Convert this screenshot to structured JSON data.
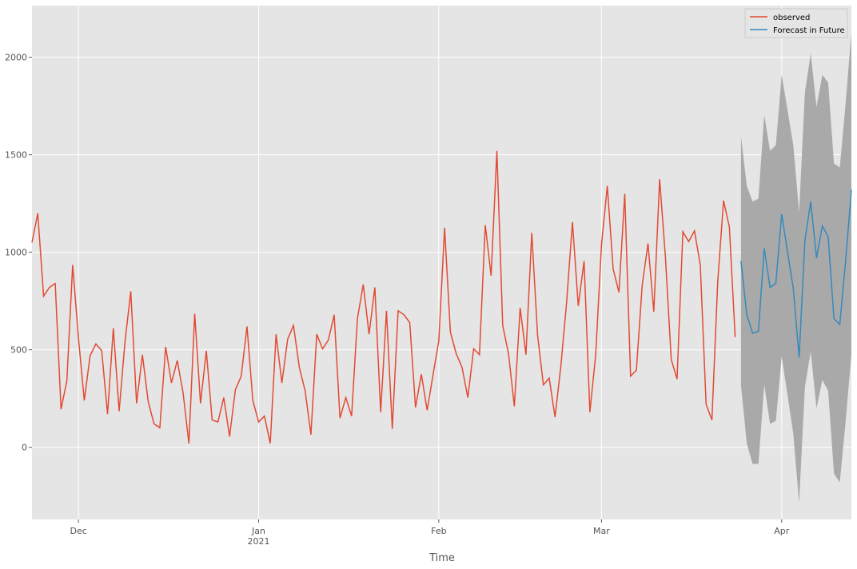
{
  "chart_data": {
    "type": "line",
    "x_label": "Time",
    "categories": [
      null,
      null,
      null,
      null,
      null,
      null,
      null,
      null,
      "Dec",
      null,
      null,
      null,
      null,
      null,
      null,
      null,
      null,
      null,
      null,
      null,
      null,
      null,
      null,
      null,
      null,
      null,
      null,
      null,
      null,
      null,
      null,
      null,
      null,
      null,
      null,
      null,
      null,
      null,
      null,
      "Jan\n2021",
      null,
      null,
      null,
      null,
      null,
      null,
      null,
      null,
      null,
      null,
      null,
      null,
      null,
      null,
      null,
      null,
      null,
      null,
      null,
      null,
      null,
      null,
      null,
      null,
      null,
      null,
      null,
      null,
      null,
      null,
      "Feb",
      null,
      null,
      null,
      null,
      null,
      null,
      null,
      null,
      null,
      null,
      null,
      null,
      null,
      null,
      null,
      null,
      null,
      null,
      null,
      null,
      null,
      null,
      null,
      null,
      null,
      null,
      null,
      "Mar",
      null,
      null,
      null,
      null,
      null,
      null,
      null,
      null,
      null,
      null,
      null,
      null,
      null,
      null,
      null,
      null,
      null,
      null,
      null,
      null,
      null,
      null,
      null,
      null,
      null,
      null,
      null,
      null,
      null,
      null,
      "Apr",
      null,
      null,
      null,
      null,
      null,
      null,
      null,
      null,
      null,
      null,
      null,
      null
    ],
    "series": [
      {
        "name": "observed",
        "color": "#e24a33",
        "values": [
          1050,
          1200,
          775,
          820,
          840,
          195,
          340,
          935,
          560,
          240,
          470,
          530,
          495,
          170,
          610,
          185,
          540,
          800,
          225,
          475,
          235,
          120,
          100,
          515,
          330,
          445,
          280,
          20,
          685,
          225,
          495,
          140,
          130,
          255,
          55,
          295,
          365,
          620,
          240,
          130,
          160,
          20,
          580,
          330,
          555,
          625,
          410,
          290,
          65,
          580,
          505,
          550,
          680,
          150,
          255,
          160,
          660,
          835,
          580,
          820,
          180,
          700,
          95,
          700,
          680,
          640,
          205,
          375,
          190,
          370,
          545,
          1125,
          590,
          480,
          410,
          255,
          505,
          475,
          1140,
          880,
          1520,
          625,
          480,
          210,
          715,
          475,
          1100,
          575,
          320,
          355,
          155,
          415,
          745,
          1155,
          725,
          955,
          180,
          475,
          1040,
          1340,
          915,
          795,
          1300,
          365,
          395,
          830,
          1045,
          695,
          1375,
          975,
          450,
          350,
          1105,
          1055,
          1110,
          935,
          220,
          140,
          850,
          1265,
          1130,
          565,
          null,
          null,
          null,
          null,
          null,
          null,
          null,
          null,
          null,
          null,
          null,
          null,
          null,
          null,
          null,
          null,
          null,
          null,
          null,
          null
        ]
      },
      {
        "name": "Forecast in Future",
        "color": "#348abd",
        "values": [
          null,
          null,
          null,
          null,
          null,
          null,
          null,
          null,
          null,
          null,
          null,
          null,
          null,
          null,
          null,
          null,
          null,
          null,
          null,
          null,
          null,
          null,
          null,
          null,
          null,
          null,
          null,
          null,
          null,
          null,
          null,
          null,
          null,
          null,
          null,
          null,
          null,
          null,
          null,
          null,
          null,
          null,
          null,
          null,
          null,
          null,
          null,
          null,
          null,
          null,
          null,
          null,
          null,
          null,
          null,
          null,
          null,
          null,
          null,
          null,
          null,
          null,
          null,
          null,
          null,
          null,
          null,
          null,
          null,
          null,
          null,
          null,
          null,
          null,
          null,
          null,
          null,
          null,
          null,
          null,
          null,
          null,
          null,
          null,
          null,
          null,
          null,
          null,
          null,
          null,
          null,
          null,
          null,
          null,
          null,
          null,
          null,
          null,
          null,
          null,
          null,
          null,
          null,
          null,
          null,
          null,
          null,
          null,
          null,
          null,
          null,
          null,
          null,
          null,
          null,
          null,
          null,
          null,
          null,
          null,
          null,
          null,
          955,
          680,
          585,
          595,
          1020,
          820,
          840,
          1195,
          1005,
          815,
          460,
          1060,
          1260,
          970,
          1135,
          1080,
          660,
          630,
          955,
          1320
        ]
      }
    ],
    "interval": {
      "color": "#a9a9a9",
      "lower": [
        null,
        null,
        null,
        null,
        null,
        null,
        null,
        null,
        null,
        null,
        null,
        null,
        null,
        null,
        null,
        null,
        null,
        null,
        null,
        null,
        null,
        null,
        null,
        null,
        null,
        null,
        null,
        null,
        null,
        null,
        null,
        null,
        null,
        null,
        null,
        null,
        null,
        null,
        null,
        null,
        null,
        null,
        null,
        null,
        null,
        null,
        null,
        null,
        null,
        null,
        null,
        null,
        null,
        null,
        null,
        null,
        null,
        null,
        null,
        null,
        null,
        null,
        null,
        null,
        null,
        null,
        null,
        null,
        null,
        null,
        null,
        null,
        null,
        null,
        null,
        null,
        null,
        null,
        null,
        null,
        null,
        null,
        null,
        null,
        null,
        null,
        null,
        null,
        null,
        null,
        null,
        null,
        null,
        null,
        null,
        null,
        null,
        null,
        null,
        null,
        null,
        null,
        null,
        null,
        null,
        null,
        null,
        null,
        null,
        null,
        null,
        null,
        null,
        null,
        null,
        null,
        null,
        null,
        null,
        null,
        null,
        null,
        320,
        20,
        -85,
        -85,
        320,
        120,
        135,
        465,
        270,
        70,
        -285,
        310,
        490,
        200,
        345,
        290,
        -135,
        -180,
        130,
        480
      ],
      "upper": [
        null,
        null,
        null,
        null,
        null,
        null,
        null,
        null,
        null,
        null,
        null,
        null,
        null,
        null,
        null,
        null,
        null,
        null,
        null,
        null,
        null,
        null,
        null,
        null,
        null,
        null,
        null,
        null,
        null,
        null,
        null,
        null,
        null,
        null,
        null,
        null,
        null,
        null,
        null,
        null,
        null,
        null,
        null,
        null,
        null,
        null,
        null,
        null,
        null,
        null,
        null,
        null,
        null,
        null,
        null,
        null,
        null,
        null,
        null,
        null,
        null,
        null,
        null,
        null,
        null,
        null,
        null,
        null,
        null,
        null,
        null,
        null,
        null,
        null,
        null,
        null,
        null,
        null,
        null,
        null,
        null,
        null,
        null,
        null,
        null,
        null,
        null,
        null,
        null,
        null,
        null,
        null,
        null,
        null,
        null,
        null,
        null,
        null,
        null,
        null,
        null,
        null,
        null,
        null,
        null,
        null,
        null,
        null,
        null,
        null,
        null,
        null,
        null,
        null,
        null,
        null,
        null,
        null,
        null,
        null,
        null,
        null,
        1595,
        1340,
        1260,
        1275,
        1705,
        1520,
        1550,
        1910,
        1730,
        1550,
        1205,
        1820,
        2020,
        1745,
        1910,
        1870,
        1455,
        1435,
        1760,
        2130
      ]
    },
    "ylim": [
      -370,
      2265
    ],
    "yticks": [
      0,
      500,
      1000,
      1500,
      2000
    ],
    "grid": true,
    "legend": "upper right"
  }
}
